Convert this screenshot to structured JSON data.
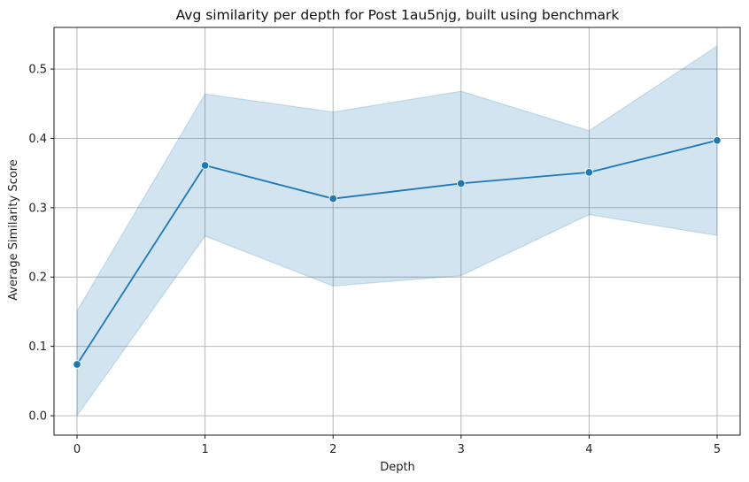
{
  "chart_data": {
    "type": "line",
    "title": "Avg similarity per depth for Post 1au5njg, built using benchmark",
    "xlabel": "Depth",
    "ylabel": "Average Similarity Score",
    "x": [
      0,
      1,
      2,
      3,
      4,
      5
    ],
    "xlim": [
      -0.18,
      5.18
    ],
    "ylim": [
      -0.028,
      0.56
    ],
    "xticks": [
      "0",
      "1",
      "2",
      "3",
      "4",
      "5"
    ],
    "yticks": [
      "0.0",
      "0.1",
      "0.2",
      "0.3",
      "0.4",
      "0.5"
    ],
    "grid": true,
    "series": [
      {
        "values": [
          0.074,
          0.361,
          0.313,
          0.335,
          0.351,
          0.397
        ],
        "ci_lower": [
          0.0,
          0.259,
          0.187,
          0.202,
          0.29,
          0.26
        ],
        "ci_upper": [
          0.151,
          0.464,
          0.438,
          0.468,
          0.411,
          0.533
        ],
        "color": "#1f77b4"
      }
    ]
  }
}
